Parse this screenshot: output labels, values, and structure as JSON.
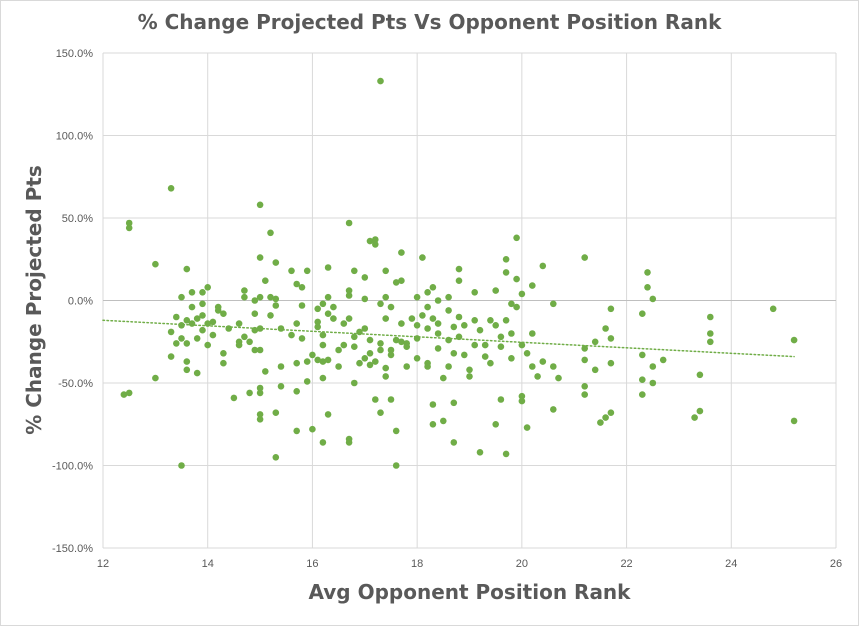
{
  "chart_data": {
    "type": "scatter",
    "title": "% Change Projected Pts Vs Opponent Position Rank",
    "xlabel": "Avg Opponent Position Rank",
    "ylabel": "% Change Projected Pts",
    "xlim": [
      12,
      26
    ],
    "ylim": [
      -150,
      150
    ],
    "x_ticks": [
      12,
      14,
      16,
      18,
      20,
      22,
      24,
      26
    ],
    "x_tick_labels": [
      "12",
      "14",
      "16",
      "18",
      "20",
      "22",
      "24",
      "26"
    ],
    "y_ticks": [
      -150,
      -100,
      -50,
      0,
      50,
      100,
      150
    ],
    "y_tick_labels": [
      "-150.0%",
      "-100.0%",
      "-50.0%",
      "0.0%",
      "50.0%",
      "100.0%",
      "150.0%"
    ],
    "grid": true,
    "marker_color": "#70ad47",
    "trendline": {
      "type": "linear",
      "style": "dotted",
      "color": "#70ad47",
      "from": [
        12,
        -12
      ],
      "to": [
        25.2,
        -34
      ]
    },
    "points": [
      [
        12.4,
        -57
      ],
      [
        12.5,
        -56
      ],
      [
        12.5,
        47
      ],
      [
        12.5,
        44
      ],
      [
        13.0,
        -47
      ],
      [
        13.0,
        22
      ],
      [
        13.3,
        68
      ],
      [
        13.3,
        -34
      ],
      [
        13.3,
        -19
      ],
      [
        13.4,
        -10
      ],
      [
        13.4,
        -26
      ],
      [
        13.5,
        2
      ],
      [
        13.5,
        -15
      ],
      [
        13.5,
        -23
      ],
      [
        13.5,
        -100
      ],
      [
        13.6,
        19
      ],
      [
        13.6,
        -12
      ],
      [
        13.6,
        -26
      ],
      [
        13.6,
        -37
      ],
      [
        13.6,
        -42
      ],
      [
        13.7,
        5
      ],
      [
        13.7,
        -4
      ],
      [
        13.7,
        -14
      ],
      [
        13.8,
        -11
      ],
      [
        13.8,
        -23
      ],
      [
        13.8,
        -44
      ],
      [
        13.9,
        5
      ],
      [
        13.9,
        -2
      ],
      [
        13.9,
        -9
      ],
      [
        13.9,
        -18
      ],
      [
        14.0,
        -14
      ],
      [
        14.0,
        8
      ],
      [
        14.0,
        -27
      ],
      [
        14.1,
        -13
      ],
      [
        14.1,
        -21
      ],
      [
        14.2,
        -4
      ],
      [
        14.2,
        -6
      ],
      [
        14.3,
        -8
      ],
      [
        14.3,
        -32
      ],
      [
        14.3,
        -38
      ],
      [
        14.4,
        -17
      ],
      [
        14.5,
        -59
      ],
      [
        14.6,
        -14
      ],
      [
        14.6,
        -25
      ],
      [
        14.6,
        -27
      ],
      [
        14.7,
        6
      ],
      [
        14.7,
        2
      ],
      [
        14.7,
        -22
      ],
      [
        14.8,
        -56
      ],
      [
        14.8,
        -25
      ],
      [
        14.9,
        0
      ],
      [
        14.9,
        -8
      ],
      [
        14.9,
        -30
      ],
      [
        14.9,
        -18
      ],
      [
        15.0,
        58
      ],
      [
        15.0,
        26
      ],
      [
        15.0,
        2
      ],
      [
        15.0,
        -17
      ],
      [
        15.0,
        -30
      ],
      [
        15.0,
        -53
      ],
      [
        15.0,
        -56
      ],
      [
        15.0,
        -69
      ],
      [
        15.0,
        -72
      ],
      [
        15.1,
        -43
      ],
      [
        15.1,
        12
      ],
      [
        15.2,
        41
      ],
      [
        15.2,
        -9
      ],
      [
        15.2,
        2
      ],
      [
        15.3,
        -3
      ],
      [
        15.3,
        1
      ],
      [
        15.3,
        -68
      ],
      [
        15.3,
        -95
      ],
      [
        15.3,
        23
      ],
      [
        15.4,
        -17
      ],
      [
        15.4,
        -40
      ],
      [
        15.4,
        -52
      ],
      [
        15.6,
        -21
      ],
      [
        15.6,
        18
      ],
      [
        15.7,
        -38
      ],
      [
        15.7,
        -55
      ],
      [
        15.7,
        -79
      ],
      [
        15.7,
        10
      ],
      [
        15.7,
        -14
      ],
      [
        15.8,
        8
      ],
      [
        15.8,
        -3
      ],
      [
        15.8,
        -23
      ],
      [
        15.9,
        18
      ],
      [
        15.9,
        -37
      ],
      [
        15.9,
        -49
      ],
      [
        16.0,
        -78
      ],
      [
        16.0,
        -33
      ],
      [
        16.1,
        -36
      ],
      [
        16.1,
        -5
      ],
      [
        16.1,
        -13
      ],
      [
        16.1,
        -16
      ],
      [
        16.2,
        -2
      ],
      [
        16.2,
        -21
      ],
      [
        16.2,
        -27
      ],
      [
        16.2,
        -37
      ],
      [
        16.2,
        -47
      ],
      [
        16.2,
        -86
      ],
      [
        16.3,
        20
      ],
      [
        16.3,
        2
      ],
      [
        16.3,
        -8
      ],
      [
        16.3,
        -36
      ],
      [
        16.3,
        -69
      ],
      [
        16.4,
        -4
      ],
      [
        16.4,
        -11
      ],
      [
        16.5,
        -30
      ],
      [
        16.5,
        -40
      ],
      [
        16.6,
        -27
      ],
      [
        16.6,
        -14
      ],
      [
        16.7,
        47
      ],
      [
        16.7,
        6
      ],
      [
        16.7,
        3
      ],
      [
        16.7,
        -11
      ],
      [
        16.7,
        -86
      ],
      [
        16.7,
        -84
      ],
      [
        16.8,
        18
      ],
      [
        16.8,
        -22
      ],
      [
        16.8,
        -28
      ],
      [
        16.8,
        -50
      ],
      [
        16.9,
        -19
      ],
      [
        16.9,
        -38
      ],
      [
        17.0,
        -17
      ],
      [
        17.0,
        -35
      ],
      [
        17.0,
        14
      ],
      [
        17.0,
        1
      ],
      [
        17.1,
        36
      ],
      [
        17.1,
        -24
      ],
      [
        17.1,
        -32
      ],
      [
        17.1,
        -39
      ],
      [
        17.2,
        -37
      ],
      [
        17.2,
        37
      ],
      [
        17.2,
        34
      ],
      [
        17.2,
        -60
      ],
      [
        17.3,
        133
      ],
      [
        17.3,
        -2
      ],
      [
        17.3,
        -68
      ],
      [
        17.3,
        -26
      ],
      [
        17.3,
        -30
      ],
      [
        17.4,
        -41
      ],
      [
        17.4,
        -46
      ],
      [
        17.4,
        -11
      ],
      [
        17.4,
        2
      ],
      [
        17.4,
        18
      ],
      [
        17.5,
        -4
      ],
      [
        17.5,
        -33
      ],
      [
        17.5,
        -60
      ],
      [
        17.5,
        -30
      ],
      [
        17.6,
        11
      ],
      [
        17.6,
        -24
      ],
      [
        17.6,
        -100
      ],
      [
        17.6,
        -79
      ],
      [
        17.7,
        12
      ],
      [
        17.7,
        29
      ],
      [
        17.7,
        -14
      ],
      [
        17.7,
        -25
      ],
      [
        17.8,
        -40
      ],
      [
        17.8,
        -26
      ],
      [
        17.8,
        -28
      ],
      [
        17.9,
        -11
      ],
      [
        18.0,
        2
      ],
      [
        18.0,
        -35
      ],
      [
        18.0,
        -15
      ],
      [
        18.0,
        -23
      ],
      [
        18.1,
        26
      ],
      [
        18.1,
        -9
      ],
      [
        18.2,
        5
      ],
      [
        18.2,
        -4
      ],
      [
        18.2,
        -38
      ],
      [
        18.2,
        -40
      ],
      [
        18.2,
        -17
      ],
      [
        18.3,
        8
      ],
      [
        18.3,
        -11
      ],
      [
        18.3,
        -75
      ],
      [
        18.3,
        -63
      ],
      [
        18.4,
        0
      ],
      [
        18.4,
        -14
      ],
      [
        18.4,
        -20
      ],
      [
        18.4,
        -29
      ],
      [
        18.5,
        -73
      ],
      [
        18.5,
        -47
      ],
      [
        18.6,
        -6
      ],
      [
        18.6,
        -24
      ],
      [
        18.6,
        -40
      ],
      [
        18.6,
        2
      ],
      [
        18.7,
        -16
      ],
      [
        18.7,
        -32
      ],
      [
        18.7,
        -62
      ],
      [
        18.7,
        -86
      ],
      [
        18.8,
        19
      ],
      [
        18.8,
        12
      ],
      [
        18.8,
        -10
      ],
      [
        18.8,
        -22
      ],
      [
        18.9,
        -15
      ],
      [
        18.9,
        -33
      ],
      [
        19.0,
        -42
      ],
      [
        19.0,
        -46
      ],
      [
        19.1,
        5
      ],
      [
        19.1,
        -12
      ],
      [
        19.1,
        -27
      ],
      [
        19.2,
        -18
      ],
      [
        19.2,
        -92
      ],
      [
        19.3,
        -27
      ],
      [
        19.3,
        -34
      ],
      [
        19.4,
        -12
      ],
      [
        19.4,
        -38
      ],
      [
        19.5,
        -75
      ],
      [
        19.5,
        6
      ],
      [
        19.5,
        -15
      ],
      [
        19.6,
        -22
      ],
      [
        19.6,
        -28
      ],
      [
        19.6,
        -60
      ],
      [
        19.7,
        25
      ],
      [
        19.7,
        17
      ],
      [
        19.7,
        -12
      ],
      [
        19.7,
        -93
      ],
      [
        19.8,
        -2
      ],
      [
        19.8,
        -20
      ],
      [
        19.8,
        -35
      ],
      [
        19.9,
        38
      ],
      [
        19.9,
        13
      ],
      [
        19.9,
        -4
      ],
      [
        20.0,
        -27
      ],
      [
        20.0,
        -58
      ],
      [
        20.0,
        -61
      ],
      [
        20.0,
        4
      ],
      [
        20.1,
        -32
      ],
      [
        20.1,
        -77
      ],
      [
        20.2,
        9
      ],
      [
        20.2,
        -20
      ],
      [
        20.2,
        -40
      ],
      [
        20.3,
        -46
      ],
      [
        20.4,
        -37
      ],
      [
        20.4,
        21
      ],
      [
        20.6,
        -2
      ],
      [
        20.6,
        -40
      ],
      [
        20.6,
        -66
      ],
      [
        20.7,
        -47
      ],
      [
        21.2,
        26
      ],
      [
        21.2,
        -29
      ],
      [
        21.2,
        -36
      ],
      [
        21.2,
        -52
      ],
      [
        21.2,
        -57
      ],
      [
        21.4,
        -25
      ],
      [
        21.4,
        -42
      ],
      [
        21.5,
        -74
      ],
      [
        21.6,
        -71
      ],
      [
        21.6,
        -17
      ],
      [
        21.7,
        -5
      ],
      [
        21.7,
        -23
      ],
      [
        21.7,
        -38
      ],
      [
        21.7,
        -68
      ],
      [
        22.3,
        -8
      ],
      [
        22.3,
        -33
      ],
      [
        22.3,
        -48
      ],
      [
        22.3,
        -57
      ],
      [
        22.4,
        8
      ],
      [
        22.4,
        17
      ],
      [
        22.5,
        1
      ],
      [
        22.5,
        -40
      ],
      [
        22.5,
        -50
      ],
      [
        22.7,
        -36
      ],
      [
        23.3,
        -71
      ],
      [
        23.4,
        -45
      ],
      [
        23.4,
        -67
      ],
      [
        23.6,
        -10
      ],
      [
        23.6,
        -25
      ],
      [
        23.6,
        -20
      ],
      [
        24.8,
        -5
      ],
      [
        25.2,
        -24
      ],
      [
        25.2,
        -73
      ]
    ]
  }
}
